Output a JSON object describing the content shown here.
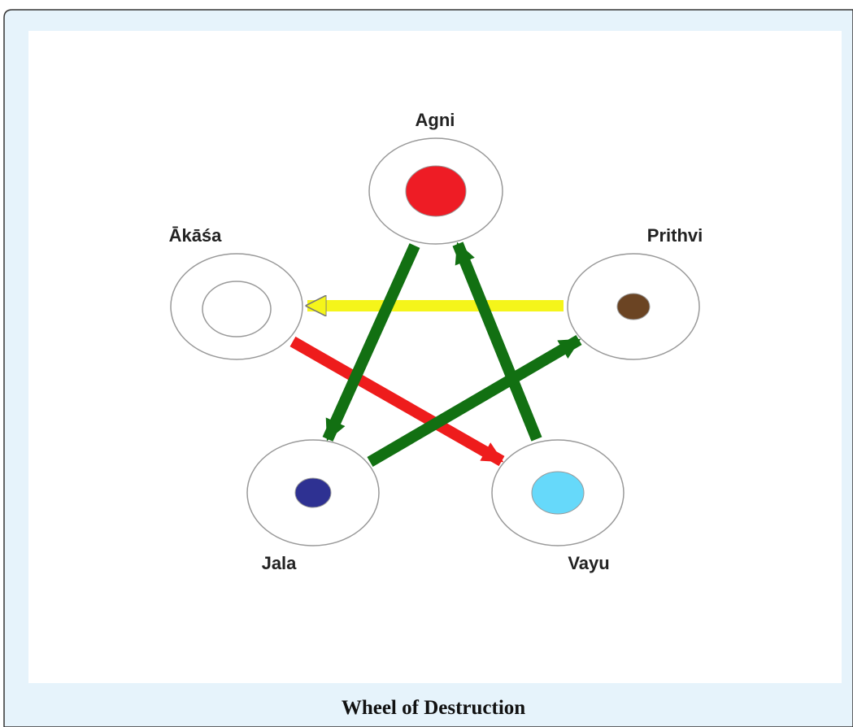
{
  "nodes": [
    {
      "label": "Agni"
    },
    {
      "label": "Ākāśa"
    },
    {
      "label": "Prithvi"
    },
    {
      "label": "Jala"
    },
    {
      "label": "Vayu"
    }
  ],
  "caption": "Wheel of Destruction"
}
